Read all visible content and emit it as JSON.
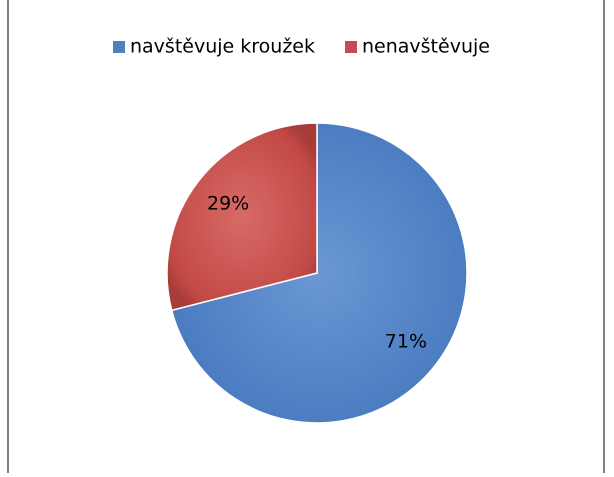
{
  "chart_data": {
    "type": "pie",
    "categories": [
      "navštěvuje kroužek",
      "nenavštěvuje"
    ],
    "values": [
      71,
      29
    ],
    "value_labels": [
      "71%",
      "29%"
    ],
    "colors": [
      "#4f81bd",
      "#c0504d"
    ],
    "legend": "top"
  }
}
